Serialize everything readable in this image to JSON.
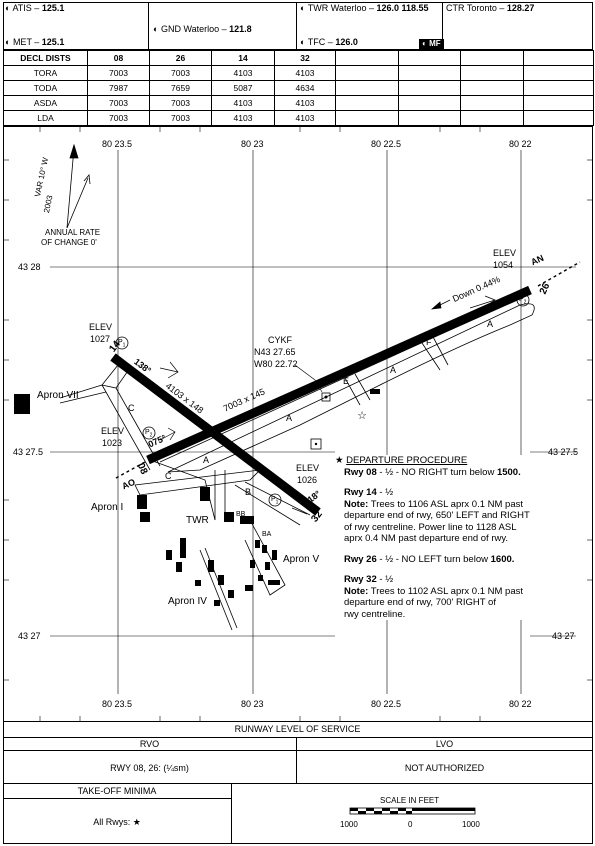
{
  "header": {
    "atis": "ATIS –",
    "atis_freq": "125.1",
    "met": "MET –",
    "met_freq": "125.1",
    "gnd": "GND Waterloo –",
    "gnd_freq": "121.8",
    "twr": "TWR Waterloo –",
    "twr_freq": "126.0  118.55",
    "tfc": "TFC –",
    "tfc_freq": "126.0",
    "ctr": "CTR Toronto –",
    "ctr_freq": "128.27",
    "mf_badge": "MF"
  },
  "decl_dists": {
    "title": "DECL DISTS",
    "runways": [
      "08",
      "26",
      "14",
      "32"
    ],
    "rows": [
      {
        "label": "TORA",
        "values": [
          "7003",
          "7003",
          "4103",
          "4103"
        ]
      },
      {
        "label": "TODA",
        "values": [
          "7987",
          "7659",
          "5087",
          "4634"
        ]
      },
      {
        "label": "ASDA",
        "values": [
          "7003",
          "7003",
          "4103",
          "4103"
        ]
      },
      {
        "label": "LDA",
        "values": [
          "7003",
          "7003",
          "4103",
          "4103"
        ]
      }
    ]
  },
  "map": {
    "grid_top": [
      "80 23.5",
      "80 23",
      "80 22.5",
      "80 22"
    ],
    "grid_bottom": [
      "80 23.5",
      "80 23",
      "80 22.5",
      "80 22"
    ],
    "lat_left": [
      "43 28",
      "43 27.5",
      "43 27"
    ],
    "lat_right": [
      "43 27.5",
      "43 27"
    ],
    "var_text": "VAR 10° W",
    "var_year": "2003",
    "annual_rate": "ANNUAL RATE",
    "annual_rate2": "OF CHANGE 0'",
    "elev_ne_label": "ELEV",
    "elev_ne_value": "1054",
    "elev_nw_label": "ELEV",
    "elev_nw_value": "1027",
    "elev_w_label": "ELEV",
    "elev_w_value": "1023",
    "elev_se_label": "ELEV",
    "elev_se_value": "1026",
    "cykf": "CYKF",
    "lat": "N43 27.65",
    "lon": "W80 22.72",
    "rwy_08": "08",
    "rwy_26": "26",
    "rwy_14": "14",
    "rwy_32": "32",
    "hdg_255": "255°",
    "hdg_075": "075°",
    "hdg_138": "138°",
    "hdg_318": "318°",
    "dim_main": "7003 x 145",
    "dim_cross": "4103 x 148",
    "down_slope": "Down 0.44%",
    "an": "AN",
    "ao": "AO",
    "apron_vii": "Apron VII",
    "apron_i": "Apron I",
    "apron_iv": "Apron IV",
    "apron_v": "Apron V",
    "twr": "TWR",
    "twy_a1": "A",
    "twy_a2": "A",
    "twy_a3": "A",
    "twy_a4": "A",
    "twy_b": "B",
    "twy_c1": "C",
    "twy_c2": "C",
    "twy_e": "E",
    "twy_f": "F",
    "twy_bb": "BB",
    "twy_ba": "BA",
    "papi": "P",
    "papi_sub": "1",
    "papi2_sub": "2"
  },
  "departure": {
    "title": "DEPARTURE PROCEDURE",
    "r08_title": "Rwy 08",
    "r08_text": " - ½ - NO RIGHT turn below ",
    "r08_alt": "1500.",
    "r14_title": "Rwy 14",
    "r14_text": " - ½",
    "r14_note_label": "Note:",
    "r14_note_1": " Trees to 1106 ASL aprx 0.1 NM past",
    "r14_note_2": "departure end of rwy, 650' LEFT and RIGHT",
    "r14_note_3": "of rwy centreline. Power line to 1128 ASL",
    "r14_note_4": "aprx 0.4 NM past departure end of rwy.",
    "r26_title": "Rwy 26",
    "r26_text": " - ½ - NO LEFT turn below ",
    "r26_alt": "1600.",
    "r32_title": "Rwy 32",
    "r32_text": " - ½",
    "r32_note_label": "Note:",
    "r32_note_1": " Trees to 1102 ASL aprx 0.1 NM past",
    "r32_note_2": "departure end of rwy, 700' RIGHT of",
    "r32_note_3": "rwy centreline."
  },
  "footer": {
    "rls_title": "RUNWAY LEVEL OF SERVICE",
    "rvo": "RVO",
    "lvo": "LVO",
    "rvo_value": "RWY 08, 26: (¼sm)",
    "lvo_value": "NOT AUTHORIZED",
    "tom_title": "TAKE-OFF MINIMA",
    "tom_value": "All Rwys: ",
    "scale_title": "SCALE IN FEET",
    "scale_left": "1000",
    "scale_mid": "0",
    "scale_right": "1000"
  }
}
